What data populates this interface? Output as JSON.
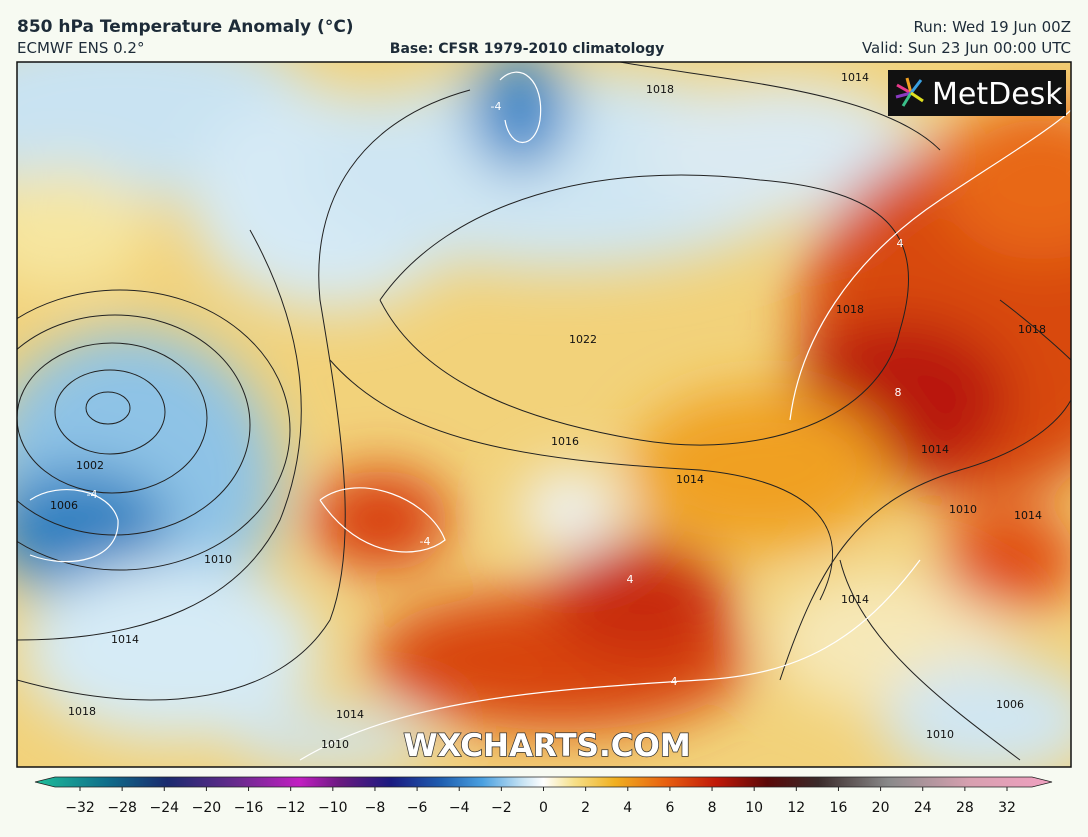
{
  "header": {
    "title": "850 hPa Temperature Anomaly (°C)",
    "model": "ECMWF ENS 0.2°",
    "base": "Base: CFSR 1979-2010 climatology",
    "run": "Run: Wed 19 Jun 00Z",
    "valid": "Valid: Sun 23 Jun 00:00 UTC"
  },
  "map": {
    "logo": "MetDesk",
    "watermark": "WXCHARTS.COM",
    "contour_labels": [
      "1014",
      "1018",
      "1018",
      "1022",
      "1018",
      "1002",
      "1006",
      "1010",
      "1014",
      "1018",
      "1014",
      "1010",
      "1014",
      "1016",
      "1014",
      "1014",
      "1010",
      "1014",
      "1006",
      "1010",
      "4",
      "-4",
      "-4",
      "8",
      "4",
      "4",
      "-4"
    ]
  },
  "colorbar": {
    "labels": [
      "−32",
      "−28",
      "−24",
      "−20",
      "−16",
      "−12",
      "−10",
      "−8",
      "−6",
      "−4",
      "−2",
      "0",
      "2",
      "4",
      "6",
      "8",
      "10",
      "12",
      "16",
      "20",
      "24",
      "28",
      "32"
    ]
  }
}
